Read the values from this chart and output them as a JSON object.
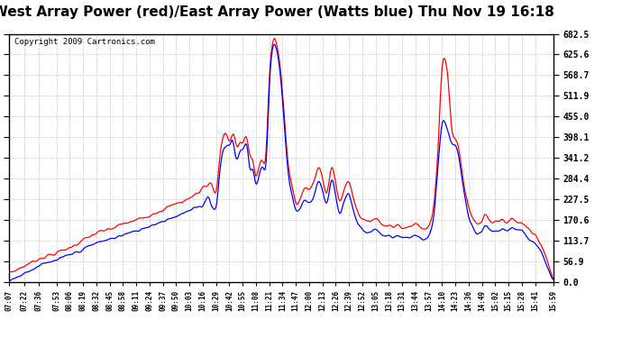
{
  "title": "West Array Power (red)/East Array Power (Watts blue) Thu Nov 19 16:18",
  "copyright": "Copyright 2009 Cartronics.com",
  "title_fontsize": 11,
  "copyright_fontsize": 6.5,
  "background_color": "#ffffff",
  "plot_bg_color": "#ffffff",
  "grid_color": "#c8c8c8",
  "red_color": "#ff0000",
  "blue_color": "#0000ff",
  "ylim": [
    0.0,
    682.5
  ],
  "yticks": [
    0.0,
    56.9,
    113.7,
    170.6,
    227.5,
    284.4,
    341.2,
    398.1,
    455.0,
    511.9,
    568.7,
    625.6,
    682.5
  ],
  "x_labels": [
    "07:07",
    "07:22",
    "07:36",
    "07:53",
    "08:06",
    "08:19",
    "08:32",
    "08:45",
    "08:58",
    "09:11",
    "09:24",
    "09:37",
    "09:50",
    "10:03",
    "10:16",
    "10:29",
    "10:42",
    "10:55",
    "11:08",
    "11:21",
    "11:34",
    "11:47",
    "12:00",
    "12:13",
    "12:26",
    "12:39",
    "12:52",
    "13:05",
    "13:18",
    "13:31",
    "13:44",
    "13:57",
    "14:10",
    "14:23",
    "14:36",
    "14:49",
    "15:02",
    "15:15",
    "15:28",
    "15:41",
    "15:59"
  ]
}
